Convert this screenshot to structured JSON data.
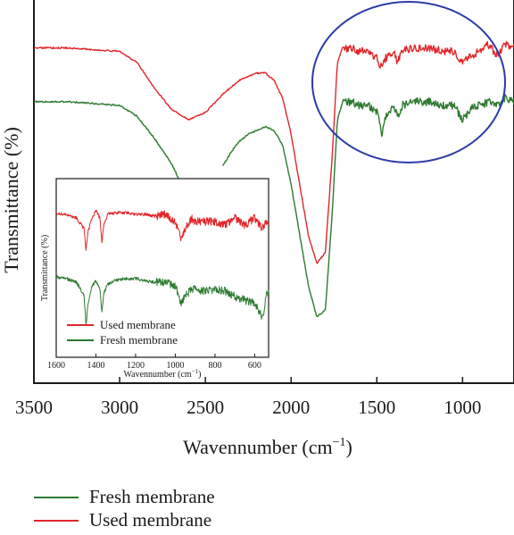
{
  "chart_data": [
    {
      "type": "line",
      "title": "",
      "xlabel": "Wavennumber (cm",
      "xlabel_sup": "−1",
      "xlabel_close": ")",
      "ylabel": "Transmittance (%)",
      "xlim": [
        3500,
        700
      ],
      "x_reversed": true,
      "x_ticks": [
        3500,
        3000,
        2500,
        2000,
        1500,
        1000
      ],
      "x_tick_labels": [
        "3500",
        "3000",
        "2500",
        "2000",
        "1500",
        "1000"
      ],
      "y_ticks_shown": false,
      "grid": false,
      "series": [
        {
          "name": "Used membrane",
          "color": "#e0262a",
          "x": [
            3500,
            3300,
            3000,
            2900,
            2800,
            2700,
            2600,
            2500,
            2400,
            2300,
            2200,
            2150,
            2100,
            2050,
            2000,
            1950,
            1900,
            1850,
            1800,
            1760,
            1730,
            1700,
            1650,
            1600,
            1550,
            1500,
            1470,
            1450,
            1400,
            1380,
            1350,
            1300,
            1200,
            1100,
            1050,
            1000,
            950,
            900,
            850,
            800,
            750,
            700
          ],
          "values": [
            0.9,
            0.9,
            0.89,
            0.86,
            0.79,
            0.73,
            0.7,
            0.72,
            0.77,
            0.81,
            0.83,
            0.83,
            0.81,
            0.76,
            0.66,
            0.52,
            0.38,
            0.3,
            0.33,
            0.6,
            0.86,
            0.9,
            0.9,
            0.89,
            0.89,
            0.87,
            0.84,
            0.87,
            0.89,
            0.86,
            0.89,
            0.9,
            0.9,
            0.89,
            0.89,
            0.86,
            0.88,
            0.89,
            0.91,
            0.88,
            0.91,
            0.9
          ]
        },
        {
          "name": "Fresh membrane",
          "color": "#2c7a2f",
          "x": [
            3500,
            3300,
            3000,
            2900,
            2800,
            2700,
            2650,
            2400,
            2350,
            2300,
            2250,
            2200,
            2150,
            2100,
            2050,
            2000,
            1950,
            1900,
            1850,
            1800,
            1760,
            1730,
            1700,
            1650,
            1600,
            1550,
            1500,
            1470,
            1450,
            1400,
            1380,
            1350,
            1300,
            1200,
            1100,
            1050,
            1000,
            950,
            900,
            850,
            800,
            750,
            700
          ],
          "values": [
            0.75,
            0.75,
            0.74,
            0.71,
            0.65,
            0.58,
            0.53,
            0.57,
            0.61,
            0.64,
            0.66,
            0.67,
            0.68,
            0.67,
            0.63,
            0.52,
            0.38,
            0.24,
            0.15,
            0.17,
            0.44,
            0.7,
            0.75,
            0.75,
            0.74,
            0.74,
            0.72,
            0.66,
            0.71,
            0.74,
            0.71,
            0.74,
            0.75,
            0.75,
            0.74,
            0.74,
            0.7,
            0.73,
            0.74,
            0.75,
            0.74,
            0.76,
            0.75
          ]
        }
      ],
      "gap_x_range": [
        2650,
        2400
      ],
      "annotation": {
        "shape": "ellipse",
        "color": "#2b3aa8",
        "x_range": [
          1800,
          700
        ]
      }
    },
    {
      "type": "line",
      "title": "",
      "xlabel": "Wavennumber (cm",
      "xlabel_sup": "−1",
      "xlabel_close": ")",
      "ylabel": "Transmittance (%)",
      "xlim": [
        1600,
        530
      ],
      "x_reversed": true,
      "x_ticks": [
        1600,
        1400,
        1200,
        1000,
        800,
        600
      ],
      "x_tick_labels": [
        "1600",
        "1400",
        "1200",
        "1000",
        "800",
        "600"
      ],
      "legend": {
        "placement": "bottom-left",
        "entries": [
          "Used membrane",
          "Fresh membrane"
        ]
      },
      "series": [
        {
          "name": "Used membrane",
          "color": "#e0262a",
          "x": [
            1600,
            1550,
            1500,
            1460,
            1450,
            1440,
            1420,
            1400,
            1380,
            1370,
            1360,
            1340,
            1300,
            1250,
            1200,
            1150,
            1100,
            1050,
            1000,
            970,
            950,
            920,
            900,
            850,
            800,
            750,
            700,
            650,
            600,
            560,
            540
          ],
          "values": [
            0.8,
            0.8,
            0.78,
            0.72,
            0.6,
            0.7,
            0.78,
            0.82,
            0.78,
            0.64,
            0.74,
            0.8,
            0.81,
            0.81,
            0.8,
            0.8,
            0.79,
            0.8,
            0.76,
            0.66,
            0.72,
            0.78,
            0.76,
            0.76,
            0.76,
            0.74,
            0.78,
            0.74,
            0.78,
            0.72,
            0.76
          ]
        },
        {
          "name": "Fresh membrane",
          "color": "#2c7a2f",
          "x": [
            1600,
            1550,
            1500,
            1460,
            1450,
            1440,
            1420,
            1400,
            1380,
            1370,
            1360,
            1340,
            1300,
            1250,
            1200,
            1150,
            1100,
            1050,
            1000,
            970,
            950,
            920,
            900,
            850,
            800,
            750,
            700,
            650,
            600,
            560,
            540
          ],
          "values": [
            0.45,
            0.44,
            0.42,
            0.35,
            0.18,
            0.3,
            0.4,
            0.43,
            0.38,
            0.26,
            0.36,
            0.41,
            0.43,
            0.44,
            0.44,
            0.43,
            0.42,
            0.42,
            0.4,
            0.3,
            0.34,
            0.38,
            0.38,
            0.37,
            0.38,
            0.37,
            0.34,
            0.32,
            0.3,
            0.22,
            0.36
          ]
        }
      ]
    }
  ],
  "legend_bottom": [
    {
      "label": "Fresh membrane",
      "color": "#2c7a2f"
    },
    {
      "label": "Used membrane",
      "color": "#e0262a"
    }
  ]
}
